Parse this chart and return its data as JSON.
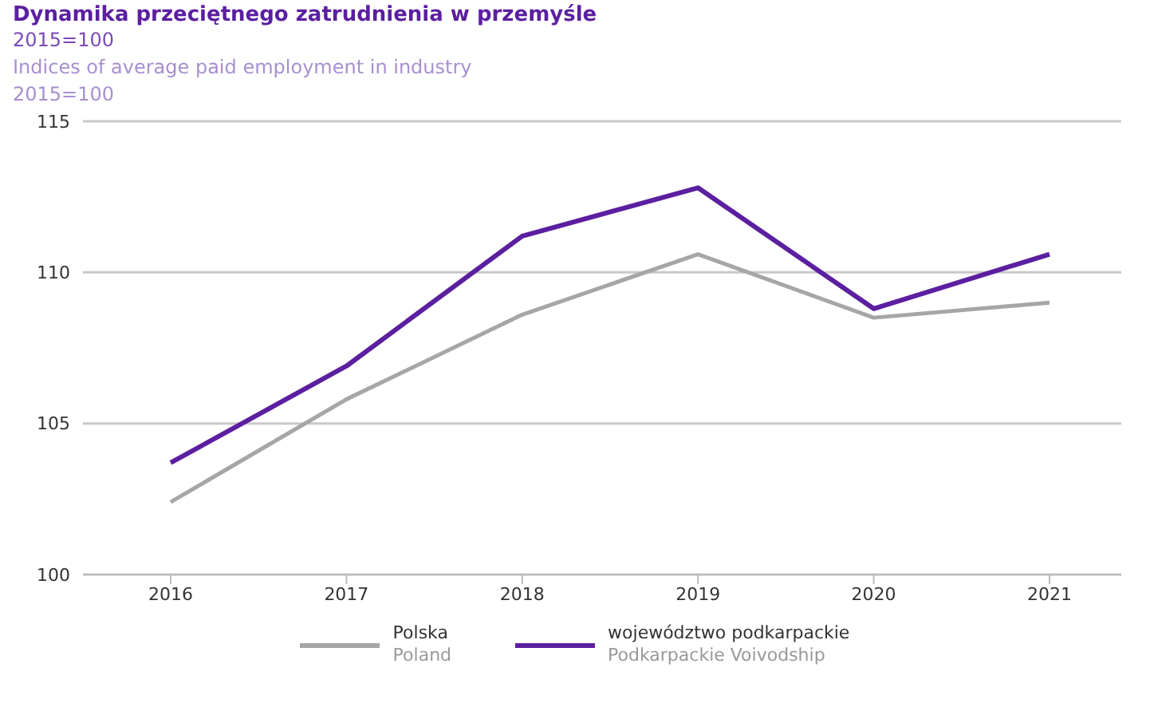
{
  "chart_data": {
    "type": "line",
    "title": "Dynamika przeciętnego zatrudnienia w przemyśle",
    "subtitle": "2015=100\nIndices of average paid employment in industry\n2015=100",
    "categories": [
      "2016",
      "2017",
      "2018",
      "2019",
      "2020",
      "2021"
    ],
    "series": [
      {
        "name": "Polska\nPoland",
        "color": "#a6a6a6",
        "values": [
          102.4,
          105.8,
          108.6,
          110.6,
          108.5,
          109.0
        ]
      },
      {
        "name": "województwo podkarpackie\nPodkarpackie Voivodship",
        "color": "#5b1fa0",
        "values": [
          103.7,
          106.9,
          111.2,
          112.8,
          108.8,
          110.6
        ]
      }
    ],
    "ylim": [
      100,
      115
    ],
    "yticks": [
      100,
      105,
      110,
      115
    ],
    "grid": "y",
    "legend": "bottom",
    "marker": "none",
    "line_style": "solid"
  }
}
